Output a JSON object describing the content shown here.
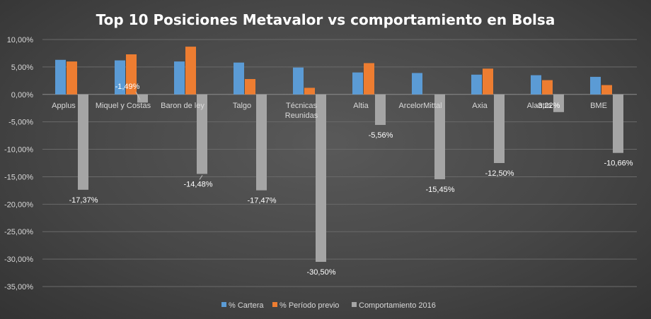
{
  "chart_data": {
    "type": "bar",
    "title": "Top 10 Posiciones Metavalor vs comportamiento en Bolsa",
    "xlabel": "",
    "ylabel": "",
    "ylim": [
      -35,
      10
    ],
    "yticks": [
      10,
      5,
      0,
      -5,
      -10,
      -15,
      -20,
      -25,
      -30,
      -35
    ],
    "ytick_labels": [
      "10,00%",
      "5,00%",
      "0,00%",
      "-5,00%",
      "-10,00%",
      "-15,00%",
      "-20,00%",
      "-25,00%",
      "-30,00%",
      "-35,00%"
    ],
    "grid": true,
    "legend_position": "bottom",
    "categories": [
      "Applus",
      "Miquel y Costas",
      "Baron de ley",
      "Talgo",
      "Técnicas Reunidas",
      "Altia",
      "ArcelorMittal",
      "Axia",
      "Alantra",
      "BME"
    ],
    "category_labels": [
      [
        "Applus"
      ],
      [
        "Miquel y Costas"
      ],
      [
        "Baron de ley"
      ],
      [
        "Talgo"
      ],
      [
        "Técnicas",
        "Reunidas"
      ],
      [
        "Altia"
      ],
      [
        "ArcelorMittal"
      ],
      [
        "Axia"
      ],
      [
        "Alantra"
      ],
      [
        "BME"
      ]
    ],
    "series": [
      {
        "name": "% Cartera",
        "color": "#5b9bd5",
        "values": [
          6.3,
          6.2,
          6.0,
          5.8,
          4.9,
          4.0,
          3.9,
          3.6,
          3.5,
          3.2
        ]
      },
      {
        "name": "% Período previo",
        "color": "#ed7d31",
        "values": [
          6.0,
          7.3,
          8.7,
          2.8,
          1.2,
          5.7,
          0.0,
          4.7,
          2.6,
          1.7
        ]
      },
      {
        "name": "Comportamiento 2016",
        "color": "#a5a5a5",
        "values": [
          -17.37,
          -1.49,
          -14.48,
          -17.47,
          -30.5,
          -5.56,
          -15.45,
          -12.5,
          -3.22,
          -10.66
        ]
      }
    ],
    "data_labels": [
      "-17,37%",
      "-1,49%",
      "-14,48%",
      "-17,47%",
      "-30,50%",
      "-5,56%",
      "-15,45%",
      "-12,50%",
      "-3,22%",
      "-10,66%"
    ]
  }
}
